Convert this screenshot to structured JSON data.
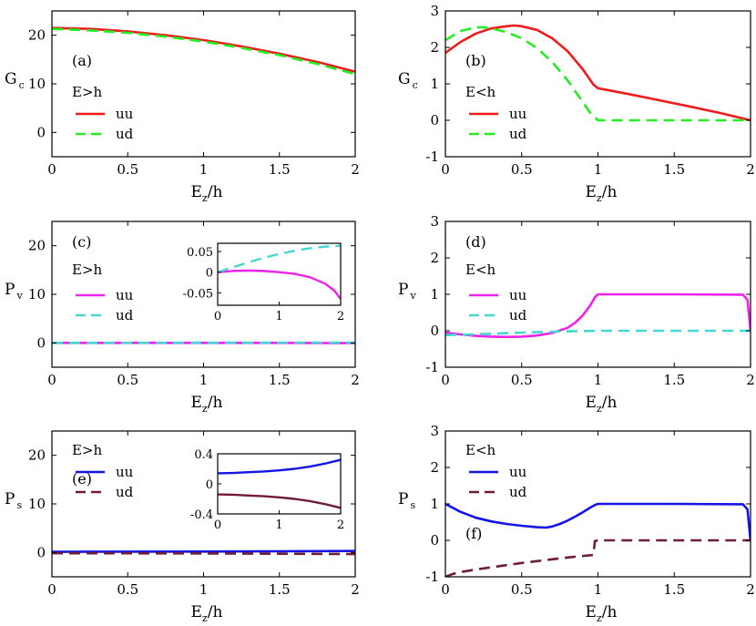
{
  "chart_data": [
    {
      "id": "a",
      "type": "line",
      "panel_label": "(a)",
      "condition": "E>h",
      "ylabel": "G",
      "ylabel_sub": "c",
      "xlabel": "E",
      "xlabel_sub": "z",
      "xlabel_suffix": "/h",
      "xlim": [
        0,
        2
      ],
      "ylim": [
        -5,
        25
      ],
      "xticks": [
        0,
        0.5,
        1,
        1.5,
        2
      ],
      "xtick_labels": [
        "0",
        "0.5",
        "1",
        "1.5",
        "2"
      ],
      "yticks": [
        0,
        10,
        20
      ],
      "ytick_labels": [
        "0",
        "10",
        "20"
      ],
      "legend": {
        "position": "left-middle",
        "entries": [
          "uu",
          "ud"
        ]
      },
      "series": [
        {
          "name": "uu",
          "color": "#ee1c1c",
          "dash": "solid",
          "x": [
            0,
            0.25,
            0.5,
            0.75,
            1,
            1.25,
            1.5,
            1.75,
            2
          ],
          "y": [
            21.5,
            21.3,
            20.8,
            20.0,
            19.0,
            17.7,
            16.2,
            14.5,
            12.5
          ]
        },
        {
          "name": "ud",
          "color": "#22ee22",
          "dash": "dashed",
          "x": [
            0,
            0.25,
            0.5,
            0.75,
            1,
            1.25,
            1.5,
            1.75,
            2
          ],
          "y": [
            21.3,
            21.0,
            20.5,
            19.7,
            18.7,
            17.4,
            15.9,
            14.1,
            12.0
          ]
        }
      ]
    },
    {
      "id": "b",
      "type": "line",
      "panel_label": "(b)",
      "condition": "E<h",
      "ylabel": "G",
      "ylabel_sub": "c",
      "xlabel": "E",
      "xlabel_sub": "z",
      "xlabel_suffix": "/h",
      "xlim": [
        0,
        2
      ],
      "ylim": [
        -1,
        3
      ],
      "xticks": [
        0,
        0.5,
        1,
        1.5,
        2
      ],
      "xtick_labels": [
        "0",
        "0.5",
        "1",
        "1.5",
        "2"
      ],
      "yticks": [
        -1,
        0,
        1,
        2,
        3
      ],
      "ytick_labels": [
        "-1",
        "0",
        "1",
        "2",
        "3"
      ],
      "legend": {
        "position": "left-bottom",
        "entries": [
          "uu",
          "ud"
        ]
      },
      "series": [
        {
          "name": "uu",
          "color": "#ee1c1c",
          "dash": "solid",
          "x": [
            0,
            0.1,
            0.2,
            0.3,
            0.4,
            0.45,
            0.5,
            0.6,
            0.7,
            0.8,
            0.9,
            0.97,
            1.0,
            1.2,
            1.4,
            1.6,
            1.8,
            2.0
          ],
          "y": [
            1.85,
            2.15,
            2.38,
            2.52,
            2.58,
            2.6,
            2.58,
            2.48,
            2.25,
            1.9,
            1.4,
            0.98,
            0.88,
            0.72,
            0.55,
            0.38,
            0.2,
            0.0
          ]
        },
        {
          "name": "ud",
          "color": "#22ee22",
          "dash": "dashed",
          "x": [
            0,
            0.1,
            0.2,
            0.25,
            0.3,
            0.4,
            0.5,
            0.6,
            0.7,
            0.8,
            0.9,
            0.95,
            1.0,
            1.5,
            2.0
          ],
          "y": [
            2.2,
            2.45,
            2.55,
            2.55,
            2.52,
            2.42,
            2.25,
            1.98,
            1.6,
            1.1,
            0.5,
            0.2,
            0.0,
            0.0,
            0.0
          ]
        }
      ]
    },
    {
      "id": "c",
      "type": "line",
      "panel_label": "(c)",
      "condition": "E>h",
      "ylabel": "P",
      "ylabel_sub": "v",
      "xlabel": "E",
      "xlabel_sub": "z",
      "xlabel_suffix": "/h",
      "xlim": [
        0,
        2
      ],
      "ylim": [
        -5,
        25
      ],
      "xticks": [
        0,
        0.5,
        1,
        1.5,
        2
      ],
      "xtick_labels": [
        "0",
        "0.5",
        "1",
        "1.5",
        "2"
      ],
      "yticks": [
        0,
        10,
        20
      ],
      "ytick_labels": [
        "0",
        "10",
        "20"
      ],
      "legend": {
        "position": "left-middle",
        "entries": [
          "uu",
          "ud"
        ]
      },
      "series": [
        {
          "name": "uu",
          "color": "#ee22ee",
          "dash": "solid",
          "x": [
            0,
            0.5,
            1,
            1.5,
            2
          ],
          "y": [
            0,
            0,
            0,
            0,
            -0.05
          ]
        },
        {
          "name": "ud",
          "color": "#44d8d0",
          "dash": "dashed",
          "x": [
            0,
            0.5,
            1,
            1.5,
            2
          ],
          "y": [
            0,
            0.03,
            0.05,
            0.06,
            0.065
          ]
        }
      ],
      "inset": {
        "xlim": [
          0,
          2
        ],
        "ylim": [
          -0.08,
          0.07
        ],
        "xticks": [
          0,
          1,
          2
        ],
        "xtick_labels": [
          "0",
          "1",
          "2"
        ],
        "yticks": [
          -0.05,
          0,
          0.05
        ],
        "ytick_labels": [
          "-0.05",
          "0",
          "0.05"
        ],
        "series": [
          {
            "name": "uu",
            "color": "#ee22ee",
            "dash": "solid",
            "x": [
              0,
              0.25,
              0.5,
              0.75,
              1.0,
              1.25,
              1.5,
              1.75,
              1.9,
              2.0
            ],
            "y": [
              0,
              0.003,
              0.004,
              0.003,
              0.0,
              -0.004,
              -0.012,
              -0.028,
              -0.045,
              -0.065
            ]
          },
          {
            "name": "ud",
            "color": "#44d8d0",
            "dash": "dashed",
            "x": [
              0,
              0.25,
              0.5,
              0.75,
              1.0,
              1.25,
              1.5,
              1.75,
              2.0
            ],
            "y": [
              0.0,
              0.012,
              0.024,
              0.035,
              0.044,
              0.052,
              0.058,
              0.062,
              0.064
            ]
          }
        ]
      }
    },
    {
      "id": "d",
      "type": "line",
      "panel_label": "(d)",
      "condition": "E<h",
      "ylabel": "P",
      "ylabel_sub": "v",
      "xlabel": "E",
      "xlabel_sub": "z",
      "xlabel_suffix": "/h",
      "xlim": [
        0,
        2
      ],
      "ylim": [
        -1,
        3
      ],
      "xticks": [
        0,
        0.5,
        1,
        1.5,
        2
      ],
      "xtick_labels": [
        "0",
        "0.5",
        "1",
        "1.5",
        "2"
      ],
      "yticks": [
        -1,
        0,
        1,
        2,
        3
      ],
      "ytick_labels": [
        "-1",
        "0",
        "1",
        "2",
        "3"
      ],
      "legend": {
        "position": "left-middle",
        "entries": [
          "uu",
          "ud"
        ]
      },
      "series": [
        {
          "name": "uu",
          "color": "#ee22ee",
          "dash": "solid",
          "x": [
            0,
            0.1,
            0.2,
            0.3,
            0.4,
            0.5,
            0.6,
            0.7,
            0.8,
            0.85,
            0.9,
            0.95,
            0.98,
            1.0,
            1.5,
            1.95,
            1.98,
            2.0
          ],
          "y": [
            -0.05,
            -0.1,
            -0.14,
            -0.16,
            -0.17,
            -0.16,
            -0.13,
            -0.06,
            0.08,
            0.22,
            0.42,
            0.7,
            0.92,
            1.0,
            1.0,
            0.99,
            0.85,
            0.0
          ]
        },
        {
          "name": "ud",
          "color": "#44d8d0",
          "dash": "dashed",
          "x": [
            0,
            0.25,
            0.5,
            0.75,
            1.0,
            1.5,
            2.0
          ],
          "y": [
            -0.12,
            -0.09,
            -0.05,
            -0.02,
            0.0,
            0.0,
            0.0
          ]
        }
      ]
    },
    {
      "id": "e",
      "type": "line",
      "panel_label": "(e)",
      "condition": "E>h",
      "ylabel": "P",
      "ylabel_sub": "s",
      "xlabel": "E",
      "xlabel_sub": "z",
      "xlabel_suffix": "/h",
      "xlim": [
        0,
        2
      ],
      "ylim": [
        -5,
        25
      ],
      "xticks": [
        0,
        0.5,
        1,
        1.5,
        2
      ],
      "xtick_labels": [
        "0",
        "0.5",
        "1",
        "1.5",
        "2"
      ],
      "yticks": [
        0,
        10,
        20
      ],
      "ytick_labels": [
        "0",
        "10",
        "20"
      ],
      "legend": {
        "position": "left-upper",
        "entries": [
          "uu",
          "ud"
        ]
      },
      "series": [
        {
          "name": "uu",
          "color": "#1414e6",
          "dash": "solid",
          "x": [
            0,
            0.5,
            1,
            1.5,
            2
          ],
          "y": [
            0.15,
            0.17,
            0.2,
            0.25,
            0.32
          ]
        },
        {
          "name": "ud",
          "color": "#701a3c",
          "dash": "dashed",
          "x": [
            0,
            0.5,
            1,
            1.5,
            2
          ],
          "y": [
            -0.15,
            -0.17,
            -0.2,
            -0.25,
            -0.32
          ]
        }
      ],
      "inset": {
        "xlim": [
          0,
          2
        ],
        "ylim": [
          -0.4,
          0.4
        ],
        "xticks": [
          0,
          1,
          2
        ],
        "xtick_labels": [
          "0",
          "1",
          "2"
        ],
        "yticks": [
          -0.4,
          0,
          0.4
        ],
        "ytick_labels": [
          "-0.4",
          "0",
          "0.4"
        ],
        "series": [
          {
            "name": "uu",
            "color": "#1414e6",
            "dash": "solid",
            "x": [
              0,
              0.25,
              0.5,
              0.75,
              1.0,
              1.25,
              1.5,
              1.75,
              2.0
            ],
            "y": [
              0.14,
              0.145,
              0.155,
              0.165,
              0.18,
              0.2,
              0.23,
              0.27,
              0.32
            ]
          },
          {
            "name": "ud",
            "color": "#701a3c",
            "dash": "solid",
            "x": [
              0,
              0.25,
              0.5,
              0.75,
              1.0,
              1.25,
              1.5,
              1.75,
              2.0
            ],
            "y": [
              -0.14,
              -0.145,
              -0.155,
              -0.165,
              -0.18,
              -0.2,
              -0.23,
              -0.27,
              -0.32
            ]
          }
        ]
      }
    },
    {
      "id": "f",
      "type": "line",
      "panel_label": "(f)",
      "condition": "E<h",
      "ylabel": "P",
      "ylabel_sub": "s",
      "xlabel": "E",
      "xlabel_sub": "z",
      "xlabel_suffix": "/h",
      "xlim": [
        0,
        2
      ],
      "ylim": [
        -1,
        3
      ],
      "xticks": [
        0,
        0.5,
        1,
        1.5,
        2
      ],
      "xtick_labels": [
        "0",
        "0.5",
        "1",
        "1.5",
        "2"
      ],
      "yticks": [
        -1,
        0,
        1,
        2,
        3
      ],
      "ytick_labels": [
        "-1",
        "0",
        "1",
        "2",
        "3"
      ],
      "legend": {
        "position": "left-upper",
        "entries": [
          "uu",
          "ud"
        ]
      },
      "series": [
        {
          "name": "uu",
          "color": "#1414e6",
          "dash": "solid",
          "x": [
            0,
            0.1,
            0.2,
            0.3,
            0.4,
            0.5,
            0.6,
            0.66,
            0.7,
            0.75,
            0.8,
            0.85,
            0.9,
            0.95,
            0.98,
            1.0,
            1.5,
            1.95,
            1.98,
            2.0
          ],
          "y": [
            1.0,
            0.78,
            0.62,
            0.52,
            0.45,
            0.4,
            0.36,
            0.35,
            0.38,
            0.45,
            0.54,
            0.65,
            0.77,
            0.9,
            0.97,
            1.0,
            1.0,
            0.99,
            0.85,
            0.0
          ]
        },
        {
          "name": "ud",
          "color": "#701a3c",
          "dash": "dashed",
          "x": [
            0,
            0.05,
            0.1,
            0.2,
            0.3,
            0.4,
            0.5,
            0.6,
            0.7,
            0.8,
            0.9,
            0.97,
            0.98,
            1.0,
            1.5,
            2.0
          ],
          "y": [
            -1.0,
            -0.92,
            -0.87,
            -0.8,
            -0.74,
            -0.68,
            -0.62,
            -0.57,
            -0.52,
            -0.47,
            -0.43,
            -0.4,
            -0.02,
            0.0,
            0.0,
            0.0
          ]
        }
      ]
    }
  ]
}
